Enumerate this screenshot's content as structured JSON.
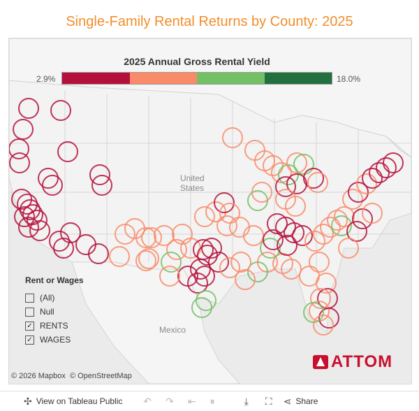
{
  "title": "Single-Family Rental Returns by County: 2025",
  "legend": {
    "title": "2025 Annual Gross Rental Yield",
    "min": "2.9%",
    "max": "18.0%",
    "colors": [
      "#b5103b",
      "#f98b68",
      "#74c065",
      "#22703f"
    ]
  },
  "map_labels": {
    "us": "United States",
    "mexico": "Mexico"
  },
  "filter": {
    "title": "Rent or Wages",
    "options": [
      {
        "label": "(All)",
        "checked": false
      },
      {
        "label": "Null",
        "checked": false
      },
      {
        "label": "RENTS",
        "checked": true
      },
      {
        "label": "WAGES",
        "checked": true
      }
    ]
  },
  "attribution": {
    "mapbox": "© 2026 Mapbox",
    "osm": "© OpenStreetMap"
  },
  "logo_text": "ATTOM",
  "footer": {
    "view_label": "View on Tableau Public",
    "share_label": "Share"
  }
}
